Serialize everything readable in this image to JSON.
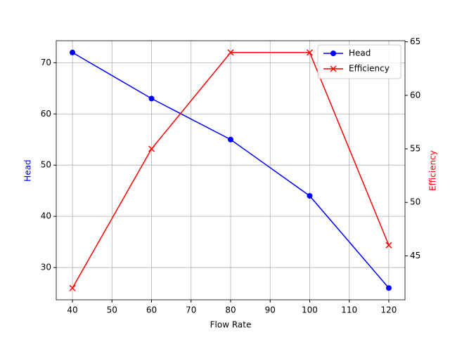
{
  "chart_data": {
    "type": "line",
    "x_label": "Flow Rate",
    "y_label": "Head",
    "y2_label": "Efficiency",
    "x": [
      40,
      60,
      80,
      100,
      120
    ],
    "series": [
      {
        "name": "Head",
        "color": "#0000ff",
        "marker": "o",
        "values": [
          72,
          63,
          55,
          44,
          26
        ]
      },
      {
        "name": "Efficiency",
        "color": "#ff0000",
        "marker": "x",
        "axis": "y2",
        "values": [
          42,
          55,
          64,
          64,
          46
        ]
      }
    ],
    "xlim": [
      35.9,
      124.1
    ],
    "xticks": [
      40,
      50,
      60,
      70,
      80,
      90,
      100,
      110,
      120
    ],
    "ylim": [
      23.7,
      74.3
    ],
    "yticks": [
      30,
      40,
      50,
      60,
      70
    ],
    "y2lim": [
      40.9,
      65.1
    ],
    "y2ticks": [
      45,
      50,
      55,
      60,
      65
    ],
    "grid": true,
    "legend": "upper right"
  }
}
